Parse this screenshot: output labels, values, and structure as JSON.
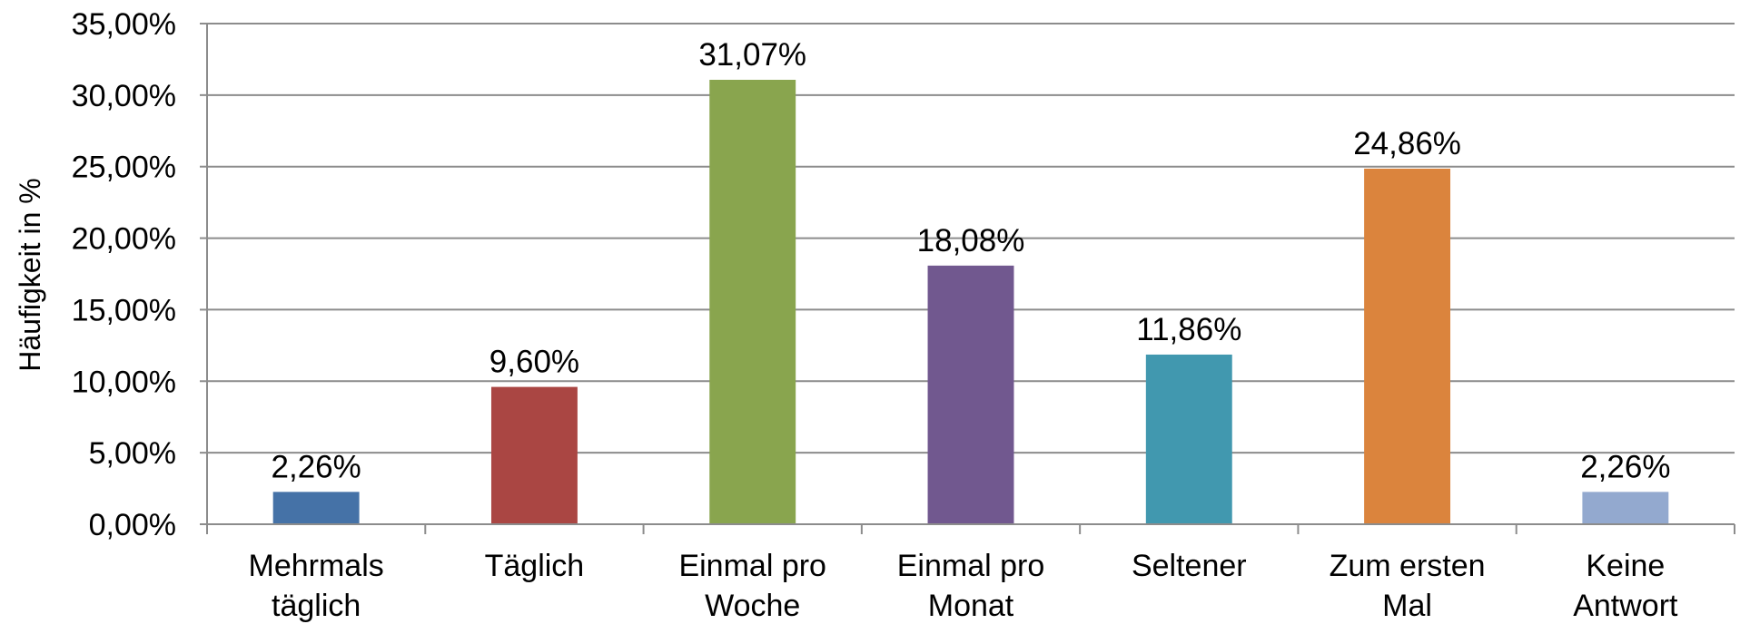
{
  "chart_data": {
    "type": "bar",
    "ylabel": "Häufigkeit in %",
    "ylim": [
      0,
      35
    ],
    "ytick_step": 5,
    "ytick_labels": [
      "0,00%",
      "5,00%",
      "10,00%",
      "15,00%",
      "20,00%",
      "25,00%",
      "30,00%",
      "35,00%"
    ],
    "grid": true,
    "legend": "none",
    "categories": [
      [
        "Mehrmals",
        "täglich"
      ],
      [
        "Täglich"
      ],
      [
        "Einmal pro",
        "Woche"
      ],
      [
        "Einmal pro",
        "Monat"
      ],
      [
        "Seltener"
      ],
      [
        "Zum ersten",
        "Mal"
      ],
      [
        "Keine",
        "Antwort"
      ]
    ],
    "values": [
      2.26,
      9.6,
      31.07,
      18.08,
      11.86,
      24.86,
      2.26
    ],
    "data_labels": [
      "2,26%",
      "9,60%",
      "31,07%",
      "18,08%",
      "11,86%",
      "24,86%",
      "2,26%"
    ],
    "colors": [
      "#4572A7",
      "#AA4643",
      "#89A54E",
      "#71588F",
      "#4198AF",
      "#DB843D",
      "#93A9CF"
    ]
  }
}
